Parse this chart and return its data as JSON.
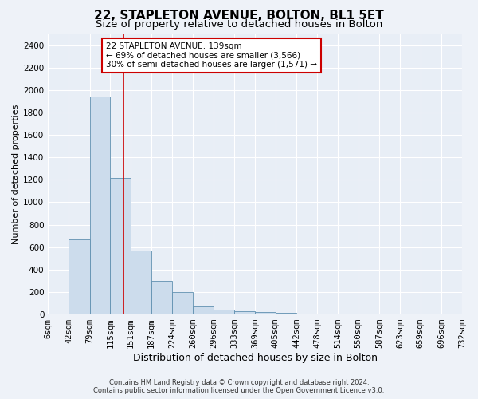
{
  "title": "22, STAPLETON AVENUE, BOLTON, BL1 5ET",
  "subtitle": "Size of property relative to detached houses in Bolton",
  "xlabel": "Distribution of detached houses by size in Bolton",
  "ylabel": "Number of detached properties",
  "footer_line1": "Contains HM Land Registry data © Crown copyright and database right 2024.",
  "footer_line2": "Contains public sector information licensed under the Open Government Licence v3.0.",
  "property_label": "22 STAPLETON AVENUE: 139sqm",
  "annotation_line2": "← 69% of detached houses are smaller (3,566)",
  "annotation_line3": "30% of semi-detached houses are larger (1,571) →",
  "bar_edges": [
    6,
    42,
    79,
    115,
    151,
    187,
    224,
    260,
    296,
    333,
    369,
    405,
    442,
    478,
    514,
    550,
    587,
    623,
    659,
    696,
    732
  ],
  "bar_heights": [
    10,
    670,
    1940,
    1220,
    570,
    300,
    200,
    75,
    45,
    30,
    25,
    15,
    10,
    10,
    8,
    5,
    5,
    4,
    3,
    2
  ],
  "bar_color": "#ccdcec",
  "bar_edge_color": "#6090b0",
  "vline_x": 139,
  "vline_color": "#cc0000",
  "annotation_box_edge_color": "#cc0000",
  "bg_color": "#eef2f8",
  "plot_bg_color": "#e8eef6",
  "ylim": [
    0,
    2500
  ],
  "yticks": [
    0,
    200,
    400,
    600,
    800,
    1000,
    1200,
    1400,
    1600,
    1800,
    2000,
    2200,
    2400
  ],
  "grid_color": "#ffffff",
  "title_fontsize": 11,
  "subtitle_fontsize": 9.5,
  "xlabel_fontsize": 9,
  "ylabel_fontsize": 8,
  "tick_fontsize": 7.5,
  "annotation_fontsize": 7.5,
  "footer_fontsize": 6
}
